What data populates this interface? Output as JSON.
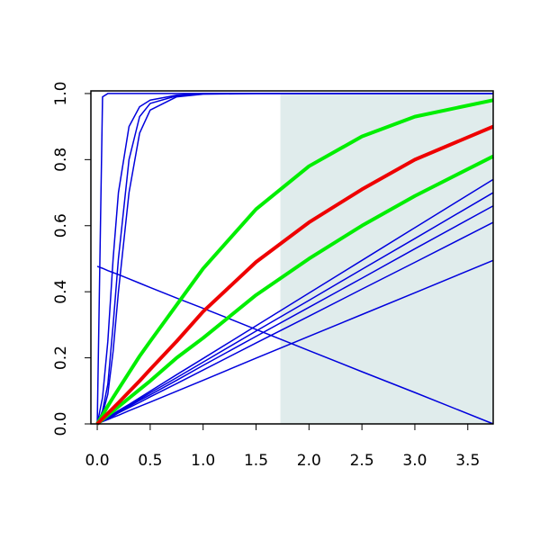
{
  "chart_data": {
    "type": "line",
    "x": [
      0,
      0.05,
      0.1,
      0.15,
      0.2,
      0.3,
      0.4,
      0.5,
      0.75,
      1,
      1.5,
      2,
      2.5,
      3,
      3.74
    ],
    "xlim": [
      -0.06,
      3.74
    ],
    "ylim": [
      0,
      1.008
    ],
    "xticks": [
      {
        "value": 0,
        "label": "0.0"
      },
      0.5,
      {
        "value": 1,
        "label": "1.0"
      },
      1.5,
      {
        "value": 2,
        "label": "2.0"
      },
      2.5,
      {
        "value": 3,
        "label": "3.0"
      },
      3.5
    ],
    "yticks": [
      {
        "value": 0,
        "label": "0.0"
      },
      0.2,
      0.4,
      0.6,
      0.8,
      {
        "value": 1,
        "label": "1.0"
      }
    ],
    "shaded_region": {
      "x": [
        1.73,
        3.74
      ],
      "y": [
        0,
        1
      ],
      "color": "#e0ecec"
    },
    "series": [
      {
        "color": "#0000dd",
        "linewidth": 1.5,
        "values": [
          0,
          0.99,
          1,
          1,
          1,
          1,
          1,
          1,
          1,
          1,
          1,
          1,
          1,
          1,
          1
        ]
      },
      {
        "color": "#0000dd",
        "linewidth": 1.5,
        "values": [
          0,
          0.08,
          0.25,
          0.5,
          0.7,
          0.9,
          0.96,
          0.98,
          0.995,
          1,
          1,
          1,
          1,
          1,
          1
        ]
      },
      {
        "color": "#0000dd",
        "linewidth": 1.5,
        "values": [
          0,
          0.04,
          0.12,
          0.3,
          0.5,
          0.8,
          0.93,
          0.97,
          0.993,
          1,
          1,
          1,
          1,
          1,
          1
        ]
      },
      {
        "color": "#0000dd",
        "linewidth": 1.5,
        "values": [
          0,
          0.03,
          0.09,
          0.22,
          0.4,
          0.7,
          0.88,
          0.95,
          0.99,
          0.998,
          1,
          1,
          1,
          1,
          1
        ]
      },
      {
        "color": "#0000dd",
        "linewidth": 1.5,
        "values": [
          0,
          0.01,
          0.02,
          0.03,
          0.04,
          0.059,
          0.079,
          0.099,
          0.149,
          0.198,
          0.297,
          0.396,
          0.495,
          0.594,
          0.74
        ]
      },
      {
        "color": "#0000dd",
        "linewidth": 1.5,
        "values": [
          0,
          0.009,
          0.019,
          0.028,
          0.037,
          0.056,
          0.075,
          0.094,
          0.14,
          0.187,
          0.281,
          0.374,
          0.468,
          0.561,
          0.7
        ]
      },
      {
        "color": "#0000dd",
        "linewidth": 1.5,
        "values": [
          0,
          0.009,
          0.018,
          0.026,
          0.035,
          0.053,
          0.071,
          0.088,
          0.132,
          0.177,
          0.265,
          0.353,
          0.441,
          0.53,
          0.66
        ]
      },
      {
        "color": "#0000dd",
        "linewidth": 1.5,
        "values": [
          0,
          0.008,
          0.016,
          0.024,
          0.033,
          0.049,
          0.065,
          0.082,
          0.122,
          0.163,
          0.245,
          0.326,
          0.408,
          0.489,
          0.61
        ]
      },
      {
        "color": "#0000dd",
        "linewidth": 1.5,
        "values": [
          0,
          0.007,
          0.013,
          0.02,
          0.026,
          0.04,
          0.053,
          0.066,
          0.099,
          0.132,
          0.199,
          0.265,
          0.331,
          0.397,
          0.495
        ]
      },
      {
        "color": "#0000dd",
        "linewidth": 1.5,
        "values": [
          0.477,
          0.471,
          0.464,
          0.458,
          0.452,
          0.439,
          0.426,
          0.413,
          0.381,
          0.35,
          0.286,
          0.222,
          0.158,
          0.095,
          0
        ]
      },
      {
        "color": "#00ee00",
        "linewidth": 4,
        "values": [
          0,
          0.027,
          0.054,
          0.08,
          0.105,
          0.155,
          0.205,
          0.25,
          0.36,
          0.47,
          0.65,
          0.78,
          0.87,
          0.93,
          0.98
        ]
      },
      {
        "color": "#00ee00",
        "linewidth": 4,
        "values": [
          0,
          0.013,
          0.026,
          0.039,
          0.052,
          0.078,
          0.104,
          0.13,
          0.2,
          0.26,
          0.39,
          0.5,
          0.6,
          0.69,
          0.81
        ]
      },
      {
        "color": "#ee0000",
        "linewidth": 4,
        "values": [
          0,
          0.016,
          0.032,
          0.048,
          0.064,
          0.097,
          0.13,
          0.165,
          0.25,
          0.34,
          0.49,
          0.61,
          0.71,
          0.8,
          0.9
        ]
      }
    ]
  }
}
